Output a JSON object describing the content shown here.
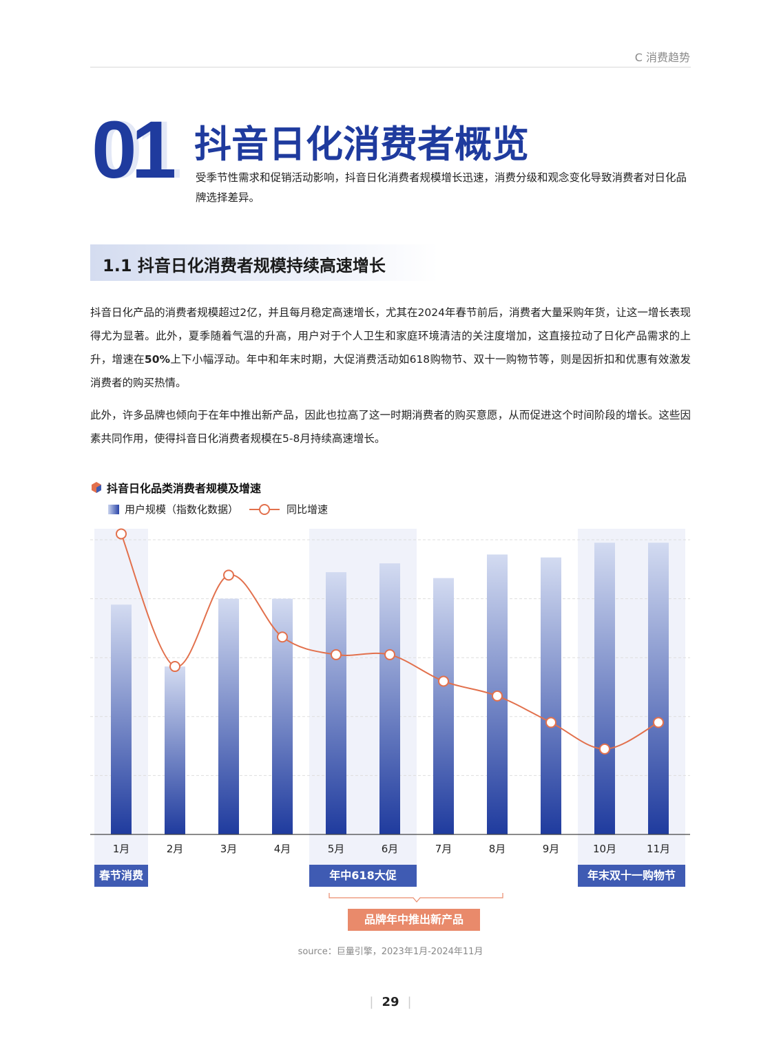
{
  "header": {
    "section": "C 消费趋势"
  },
  "chapter": {
    "number": "01",
    "title": "抖音日化消费者概览",
    "subtitle": "受季节性需求和促销活动影响，抖音日化消费者规模增长迅速，消费分级和观念变化导致消费者对日化品牌选择差异。"
  },
  "section": {
    "title": "1.1 抖音日化消费者规模持续高速增长"
  },
  "body": {
    "p1_a": "抖音日化产品的消费者规模超过2亿，并且每月稳定高速增长，尤其在2024年春节前后，消费者大量采购年货，让这一增长表现得尤为显著。此外，夏季随着气温的升高，用户对于个人卫生和家庭环境清洁的关注度增加，这直接拉动了日化产品需求的上升，增速在",
    "p1_bold": "50%",
    "p1_b": "上下小幅浮动。年中和年末时期，大促消费活动如618购物节、双十一购物节等，则是因折扣和优惠有效激发消费者的购买热情。",
    "p2": "此外，许多品牌也倾向于在年中推出新产品，因此也拉高了这一时期消费者的购买意愿，从而促进这个时间阶段的增长。这些因素共同作用，使得抖音日化消费者规模在5-8月持续高速增长。"
  },
  "chart_data": {
    "type": "bar+line",
    "title": "抖音日化品类消费者规模及增速",
    "categories": [
      "1月",
      "2月",
      "3月",
      "4月",
      "5月",
      "6月",
      "7月",
      "8月",
      "9月",
      "10月",
      "11月"
    ],
    "series": [
      {
        "name": "用户规模（指数化数据）",
        "type": "bar",
        "values": [
          78,
          57,
          80,
          80,
          89,
          92,
          87,
          95,
          94,
          99,
          99
        ]
      },
      {
        "name": "同比增速",
        "type": "line",
        "values": [
          102,
          57,
          88,
          67,
          61,
          61,
          52,
          47,
          38,
          29,
          38
        ]
      }
    ],
    "ylim": [
      0,
      100
    ],
    "y_axis_labels": "none",
    "grid": true,
    "legend_placement": "top-left",
    "highlight_periods": [
      {
        "label": "春节消费",
        "months": [
          "1月"
        ]
      },
      {
        "label": "年中618大促",
        "months": [
          "5月",
          "6月"
        ]
      },
      {
        "label": "年末双十一购物节",
        "months": [
          "10月",
          "11月"
        ]
      }
    ],
    "annotation": {
      "label": "品牌年中推出新产品",
      "months": [
        "5月",
        "8月"
      ]
    },
    "colors": {
      "bar_top": "#d3dbf1",
      "bar_bottom": "#1f3b9e",
      "line": "#e2704c",
      "tag": "#3f5bb3",
      "annotation": "#e98a6b"
    }
  },
  "source": "source：巨量引擎，2023年1月-2024年11月",
  "page_number": "29"
}
